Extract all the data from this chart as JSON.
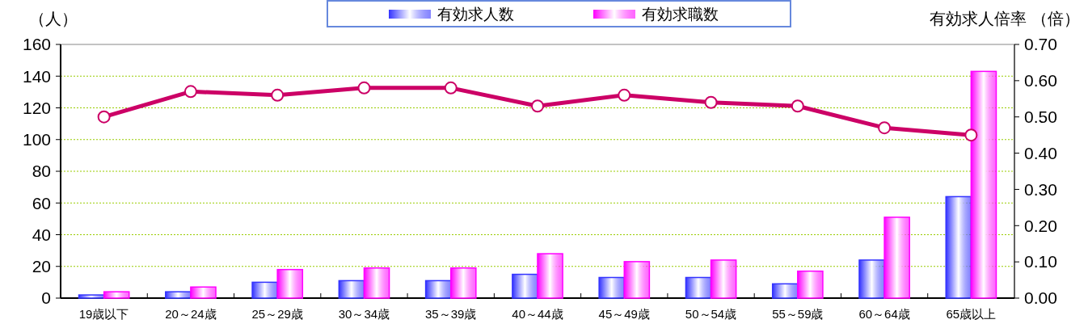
{
  "chart_data": {
    "type": "bar",
    "ylabel": "（人）",
    "y2label": "有効求人倍率 （倍）",
    "categories": [
      "19歳以下",
      "20～24歳",
      "25～29歳",
      "30～34歳",
      "35～39歳",
      "40～44歳",
      "45～49歳",
      "50～54歳",
      "55～59歳",
      "60～64歳",
      "65歳以上"
    ],
    "series": [
      {
        "name": "有効求人数",
        "color": "#3333ff",
        "values": [
          2,
          4,
          10,
          11,
          11,
          15,
          13,
          13,
          9,
          24,
          64
        ]
      },
      {
        "name": "有効求職数",
        "color": "#ff00ff",
        "values": [
          4,
          7,
          18,
          19,
          19,
          28,
          23,
          24,
          17,
          51,
          143
        ]
      },
      {
        "type": "line",
        "axis": "y2",
        "color": "#cc0066",
        "marker": "circle",
        "values": [
          0.5,
          0.57,
          0.56,
          0.58,
          0.58,
          0.53,
          0.56,
          0.54,
          0.53,
          0.47,
          0.45
        ]
      }
    ],
    "ylim": [
      0,
      160
    ],
    "yticks": [
      0,
      20,
      40,
      60,
      80,
      100,
      120,
      140,
      160
    ],
    "y2lim": [
      0,
      0.7
    ],
    "y2ticks": [
      {
        "value": 0,
        "label": "0.00"
      },
      {
        "value": 0.1,
        "label": "0.10"
      },
      {
        "value": 0.2,
        "label": "0.20"
      },
      {
        "value": 0.3,
        "label": "0.30"
      },
      {
        "value": 0.4,
        "label": "0.40"
      },
      {
        "value": 0.5,
        "label": "0.50"
      },
      {
        "value": 0.6,
        "label": "0.60"
      },
      {
        "value": 0.7,
        "label": "0.70"
      }
    ],
    "grid": "y",
    "legend": "top"
  }
}
